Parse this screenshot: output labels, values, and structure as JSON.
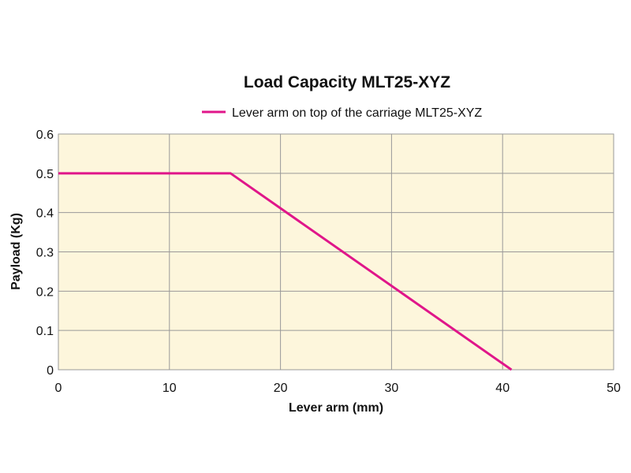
{
  "chart_data": {
    "type": "line",
    "title": "Load Capacity MLT25-XYZ",
    "xlabel": "Lever arm (mm)",
    "ylabel": "Payload (Kg)",
    "xlim": [
      0,
      50
    ],
    "ylim": [
      0,
      0.6
    ],
    "xticks": [
      0,
      10,
      20,
      30,
      40,
      50
    ],
    "yticks": [
      0,
      0.1,
      0.2,
      0.3,
      0.4,
      0.5,
      0.6
    ],
    "ytick_labels": [
      "0",
      "0.1",
      "0.2",
      "0.3",
      "0.4",
      "0.5",
      "0.6"
    ],
    "grid": true,
    "legend_position": "top-center",
    "plot_background": "#fdf6dc",
    "series": [
      {
        "name": "Lever arm on top of the carriage MLT25-XYZ",
        "color": "#e0168a",
        "x": [
          0,
          15.5,
          40.8
        ],
        "y": [
          0.5,
          0.5,
          0
        ]
      }
    ]
  }
}
